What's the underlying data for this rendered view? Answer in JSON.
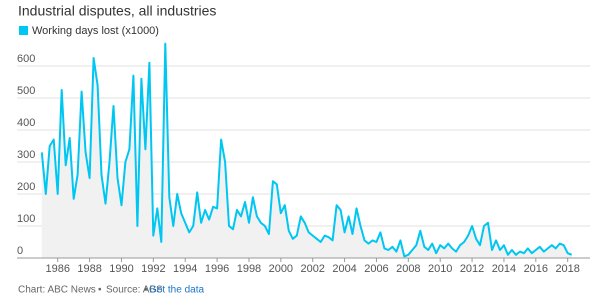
{
  "chart_data": {
    "type": "line",
    "title": "Industrial disputes, all industries",
    "source_parts": [
      "Chart: ABC News",
      "Source: ABS"
    ],
    "link": "Get the data",
    "x": [
      1985,
      1985.25,
      1985.5,
      1985.75,
      1986,
      1986.25,
      1986.5,
      1986.75,
      1987,
      1987.25,
      1987.5,
      1987.75,
      1988,
      1988.25,
      1988.5,
      1988.75,
      1989,
      1989.25,
      1989.5,
      1989.75,
      1990,
      1990.25,
      1990.5,
      1990.75,
      1991,
      1991.25,
      1991.5,
      1991.75,
      1992,
      1992.25,
      1992.5,
      1992.75,
      1993,
      1993.25,
      1993.5,
      1993.75,
      1994,
      1994.25,
      1994.5,
      1994.75,
      1995,
      1995.25,
      1995.5,
      1995.75,
      1996,
      1996.25,
      1996.5,
      1996.75,
      1997,
      1997.25,
      1997.5,
      1997.75,
      1998,
      1998.25,
      1998.5,
      1998.75,
      1999,
      1999.25,
      1999.5,
      1999.75,
      2000,
      2000.25,
      2000.5,
      2000.75,
      2001,
      2001.25,
      2001.5,
      2001.75,
      2002,
      2002.25,
      2002.5,
      2002.75,
      2003,
      2003.25,
      2003.5,
      2003.75,
      2004,
      2004.25,
      2004.5,
      2004.75,
      2005,
      2005.25,
      2005.5,
      2005.75,
      2006,
      2006.25,
      2006.5,
      2006.75,
      2007,
      2007.25,
      2007.5,
      2007.75,
      2008,
      2008.25,
      2008.5,
      2008.75,
      2009,
      2009.25,
      2009.5,
      2009.75,
      2010,
      2010.25,
      2010.5,
      2010.75,
      2011,
      2011.25,
      2011.5,
      2011.75,
      2012,
      2012.25,
      2012.5,
      2012.75,
      2013,
      2013.25,
      2013.5,
      2013.75,
      2014,
      2014.25,
      2014.5,
      2014.75,
      2015,
      2015.25,
      2015.5,
      2015.75,
      2016,
      2016.25,
      2016.5,
      2016.75,
      2017,
      2017.25,
      2017.5,
      2017.75,
      2018,
      2018.25
    ],
    "series": [
      {
        "name": "Working days lost (x1000)",
        "color": "#00c6f2",
        "values": [
          330,
          200,
          350,
          370,
          200,
          525,
          290,
          375,
          185,
          260,
          520,
          330,
          250,
          625,
          540,
          260,
          170,
          300,
          475,
          250,
          165,
          300,
          340,
          570,
          100,
          560,
          340,
          610,
          70,
          155,
          50,
          670,
          190,
          100,
          200,
          140,
          110,
          80,
          100,
          205,
          110,
          150,
          120,
          160,
          155,
          370,
          300,
          100,
          90,
          150,
          130,
          175,
          110,
          190,
          130,
          110,
          100,
          75,
          240,
          230,
          140,
          165,
          85,
          60,
          70,
          130,
          110,
          80,
          70,
          60,
          50,
          70,
          65,
          55,
          165,
          150,
          80,
          130,
          75,
          155,
          100,
          55,
          45,
          55,
          50,
          80,
          30,
          25,
          35,
          20,
          55,
          5,
          10,
          25,
          40,
          85,
          35,
          25,
          45,
          15,
          40,
          30,
          45,
          30,
          20,
          40,
          50,
          70,
          100,
          60,
          40,
          100,
          110,
          25,
          55,
          25,
          40,
          10,
          25,
          10,
          20,
          15,
          30,
          15,
          25,
          35,
          20,
          30,
          40,
          30,
          45,
          40,
          15,
          10
        ]
      }
    ],
    "xlim": [
      1984.7,
      2019.4
    ],
    "xticks": [
      1986,
      1988,
      1990,
      1992,
      1994,
      1996,
      1998,
      2000,
      2002,
      2004,
      2006,
      2008,
      2010,
      2012,
      2014,
      2016,
      2018
    ],
    "ylim": [
      0,
      680
    ],
    "yticks": [
      0,
      100,
      200,
      300,
      400,
      500,
      600
    ],
    "grid": true,
    "area_fill": "#f1f1f1"
  }
}
